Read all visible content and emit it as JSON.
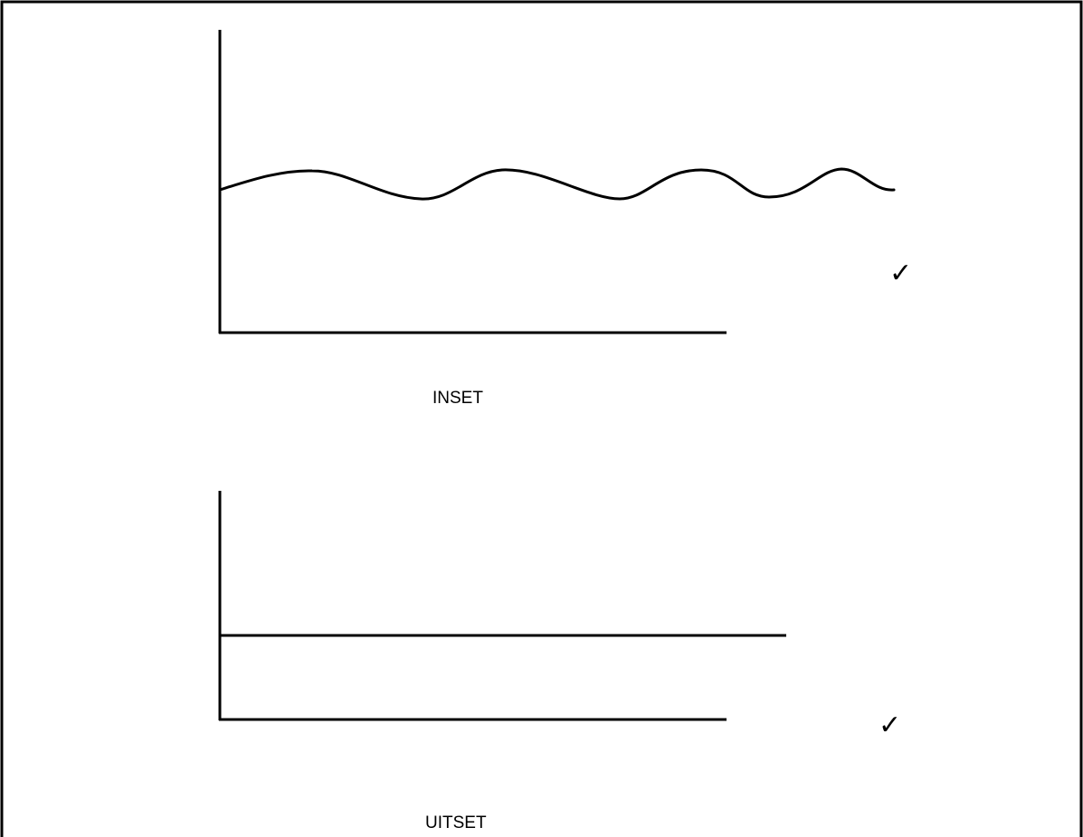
{
  "diagrams": [
    {
      "caption": "INSET",
      "tick": "✓"
    },
    {
      "caption": "UITSET",
      "tick": "✓"
    }
  ],
  "colors": {
    "stroke": "#000000",
    "background": "#ffffff"
  }
}
